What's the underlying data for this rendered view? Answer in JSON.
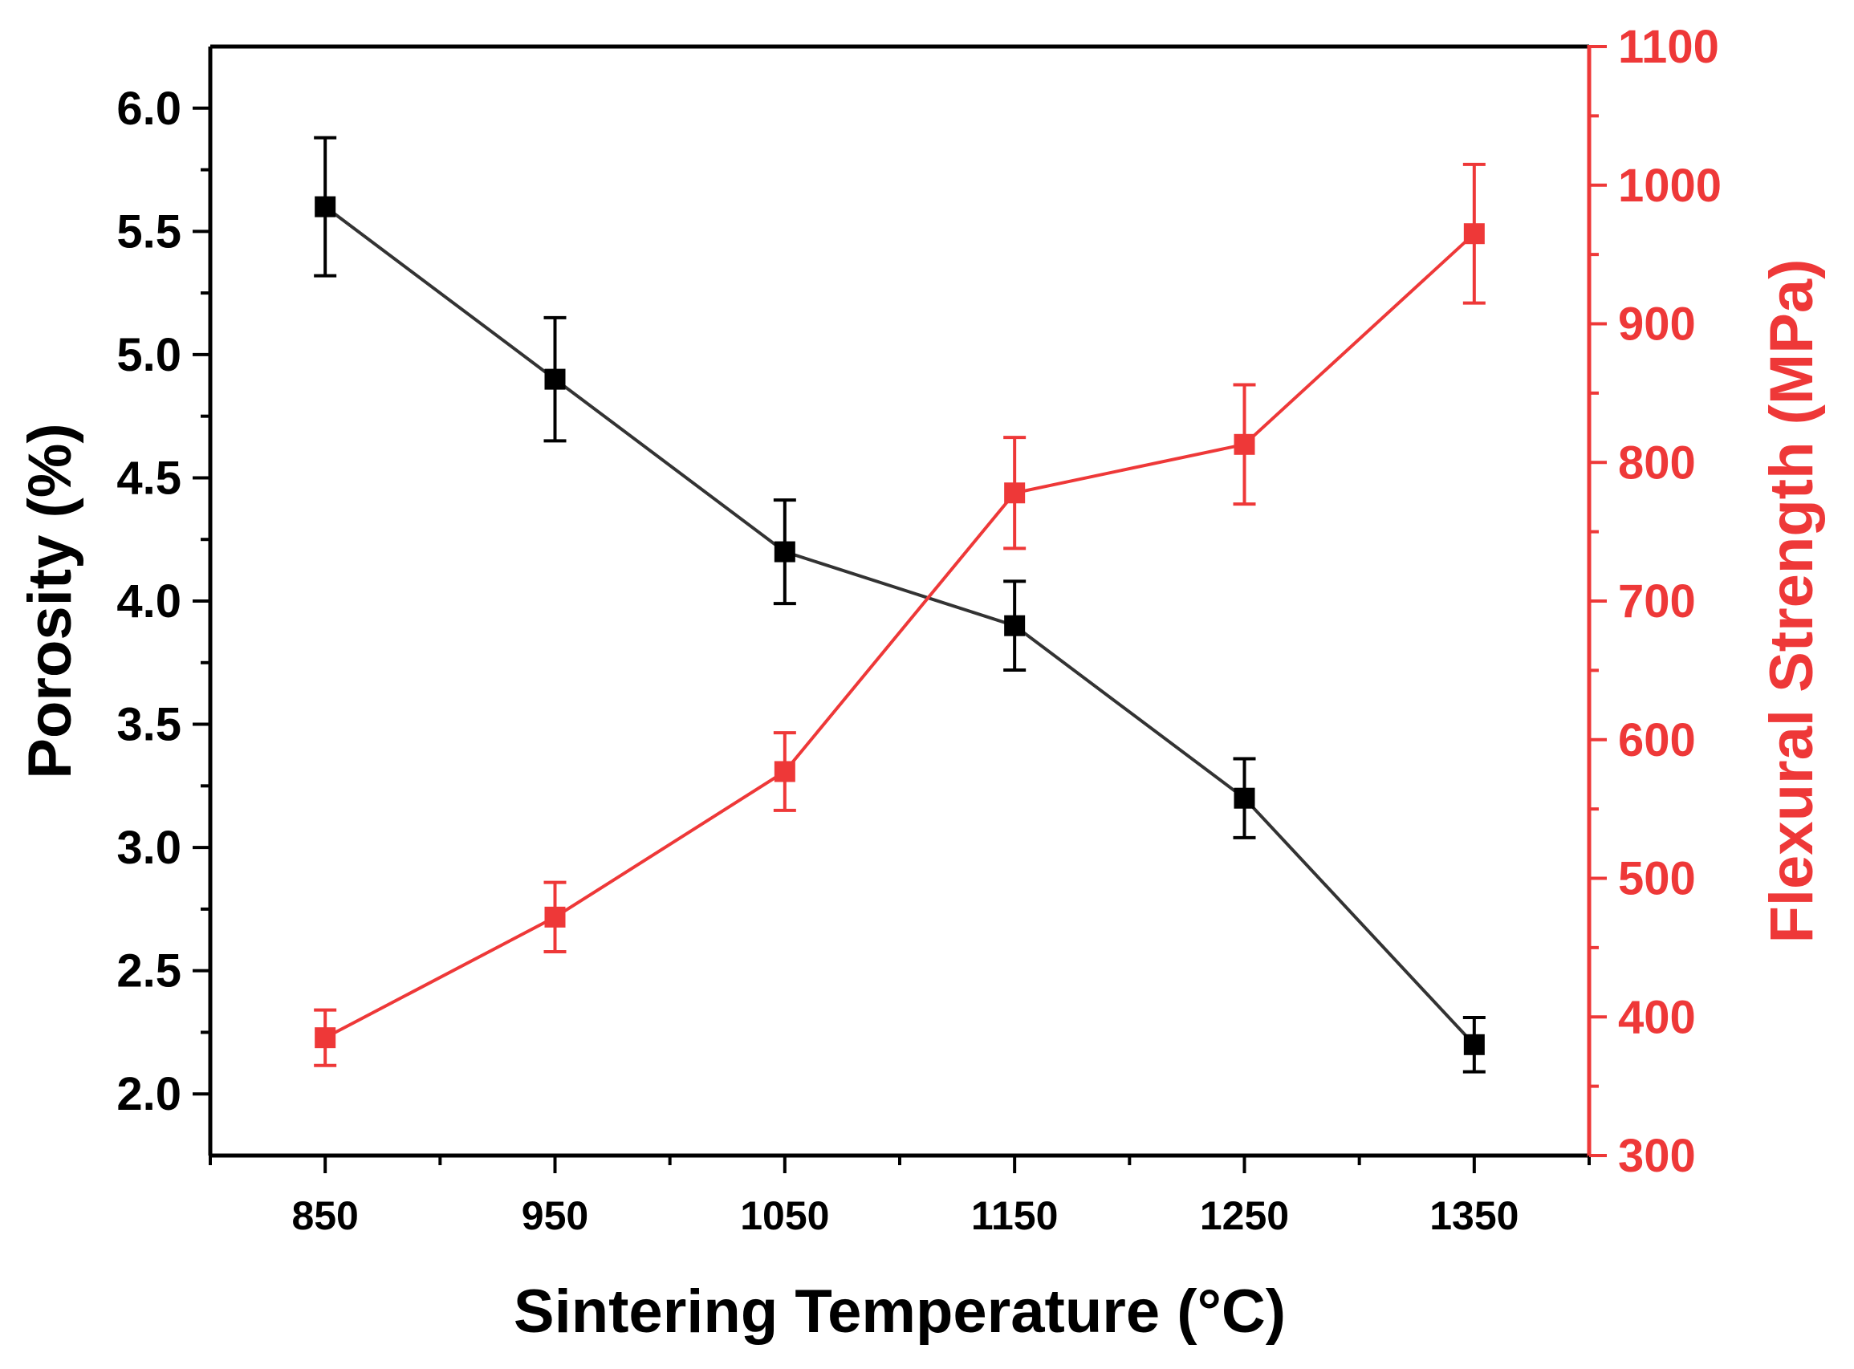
{
  "chart_data": {
    "type": "line",
    "title": "",
    "xlabel": "Sintering Temperature (°C)",
    "ylabel": "Porosity (%)",
    "y2label": "Flexural Strength (MPa)",
    "x": [
      850,
      950,
      1050,
      1150,
      1250,
      1350
    ],
    "x_tick_labels": [
      "850",
      "950",
      "1050",
      "1150",
      "1250",
      "1350"
    ],
    "xlim": [
      800,
      1400
    ],
    "ylim": [
      1.75,
      6.25
    ],
    "y_ticks": [
      2.0,
      2.5,
      3.0,
      3.5,
      4.0,
      4.5,
      5.0,
      5.5,
      6.0
    ],
    "y_tick_labels": [
      "2.0",
      "2.5",
      "3.0",
      "3.5",
      "4.0",
      "4.5",
      "5.0",
      "5.5",
      "6.0"
    ],
    "y2lim": [
      300,
      1100
    ],
    "y2_ticks": [
      300,
      400,
      500,
      600,
      700,
      800,
      900,
      1000,
      1100
    ],
    "y2_tick_labels": [
      "300",
      "400",
      "500",
      "600",
      "700",
      "800",
      "900",
      "1000",
      "1100"
    ],
    "grid": false,
    "legend": "none",
    "series": [
      {
        "name": "Porosity",
        "axis": "left",
        "color": "#000000",
        "line_color": "#333333",
        "values": [
          5.6,
          4.9,
          4.2,
          3.9,
          3.2,
          2.2
        ],
        "errors": [
          0.28,
          0.25,
          0.21,
          0.18,
          0.16,
          0.11
        ]
      },
      {
        "name": "Flexural Strength",
        "axis": "right",
        "color": "#ee3838",
        "line_color": "#ee3838",
        "values": [
          385,
          472,
          577,
          778,
          813,
          965
        ],
        "errors": [
          20,
          25,
          28,
          40,
          43,
          50
        ]
      }
    ]
  }
}
